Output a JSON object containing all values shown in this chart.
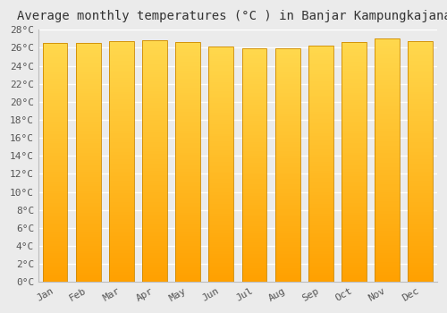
{
  "title": "Average monthly temperatures (°C ) in Banjar Kampungkajanan",
  "months": [
    "Jan",
    "Feb",
    "Mar",
    "Apr",
    "May",
    "Jun",
    "Jul",
    "Aug",
    "Sep",
    "Oct",
    "Nov",
    "Dec"
  ],
  "temperatures": [
    26.5,
    26.5,
    26.7,
    26.8,
    26.6,
    26.1,
    25.9,
    25.9,
    26.2,
    26.6,
    27.0,
    26.7
  ],
  "ylim": [
    0,
    28
  ],
  "yticks": [
    0,
    2,
    4,
    6,
    8,
    10,
    12,
    14,
    16,
    18,
    20,
    22,
    24,
    26,
    28
  ],
  "bar_width": 0.75,
  "bar_color_top": "#FFD84D",
  "bar_color_bottom": "#FFA000",
  "bar_edge_color": "#CC8800",
  "bg_color": "#EBEBEB",
  "grid_color": "#FFFFFF",
  "title_fontsize": 10,
  "tick_fontsize": 8,
  "font_family": "monospace",
  "gradient_steps": 100
}
